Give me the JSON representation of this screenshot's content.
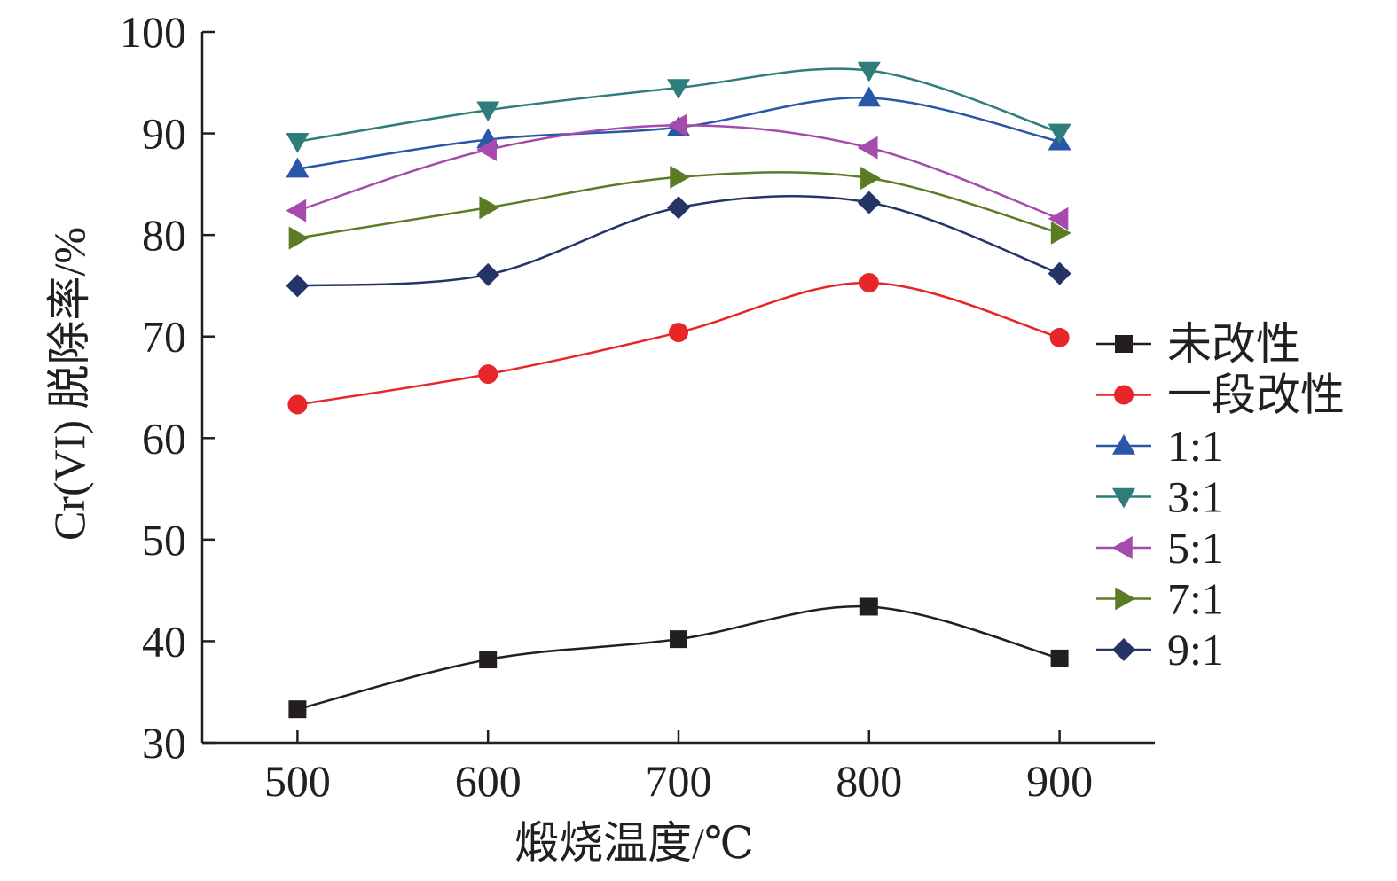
{
  "chart_data": {
    "type": "line",
    "title": "",
    "xlabel": "煅烧温度/℃",
    "ylabel": "Cr(VI) 脱除率/%",
    "x": [
      500,
      600,
      700,
      800,
      900
    ],
    "xlim": [
      450,
      950
    ],
    "ylim": [
      30,
      100
    ],
    "xticks": [
      500,
      600,
      700,
      800,
      900
    ],
    "yticks": [
      30,
      40,
      50,
      60,
      70,
      80,
      90,
      100
    ],
    "grid": false,
    "smooth": true,
    "legend_position": "right",
    "series": [
      {
        "name": "未改性",
        "color": "#231f20",
        "marker": "square",
        "values": [
          33.3,
          38.2,
          40.2,
          43.4,
          38.3
        ]
      },
      {
        "name": "一段改性",
        "color": "#e8262a",
        "marker": "circle",
        "values": [
          63.3,
          66.3,
          70.4,
          75.3,
          69.9
        ]
      },
      {
        "name": "1:1",
        "color": "#2a56a8",
        "marker": "triangle-up",
        "values": [
          86.5,
          89.4,
          90.6,
          93.5,
          89.2
        ]
      },
      {
        "name": "3:1",
        "color": "#2f7d7b",
        "marker": "triangle-down",
        "values": [
          89.2,
          92.3,
          94.5,
          96.2,
          90.1
        ]
      },
      {
        "name": "5:1",
        "color": "#a64aad",
        "marker": "triangle-left",
        "values": [
          82.4,
          88.4,
          90.8,
          88.6,
          81.6
        ]
      },
      {
        "name": "7:1",
        "color": "#5b7b24",
        "marker": "triangle-right",
        "values": [
          79.7,
          82.7,
          85.7,
          85.6,
          80.2
        ]
      },
      {
        "name": "9:1",
        "color": "#253466",
        "marker": "diamond",
        "values": [
          75.0,
          76.1,
          82.7,
          83.2,
          76.2
        ]
      }
    ]
  }
}
